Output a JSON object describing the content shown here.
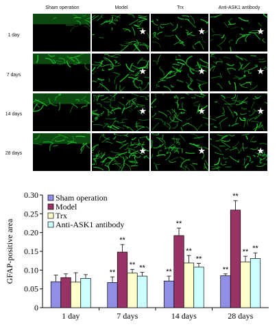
{
  "micrographs": {
    "columns": [
      "Sham operation",
      "Model",
      "Trx",
      "Anti-ASK1 antibody"
    ],
    "rows": [
      "1 day",
      "7 days",
      "14 days",
      "28 days"
    ],
    "marker_symbol": "★",
    "stain_color": "#22d12e"
  },
  "chart_data": {
    "type": "bar",
    "categories": [
      "1 day",
      "7 days",
      "14 days",
      "28 days"
    ],
    "ylabel": "GFAP-positive area",
    "xlabel": "",
    "ylim": [
      0,
      0.3
    ],
    "yticks": [
      "0",
      "0.05",
      "0.10",
      "0.15",
      "0.20",
      "0.25",
      "0.30"
    ],
    "grid": false,
    "legend_position": "top-left",
    "significance_label": "**",
    "series": [
      {
        "name": "Sham operation",
        "color": "#8f8fe6",
        "values": [
          0.069,
          0.067,
          0.071,
          0.085
        ],
        "errors": [
          0.018,
          0.015,
          0.013,
          0.005
        ],
        "marked": [
          false,
          true,
          true,
          true
        ]
      },
      {
        "name": "Model",
        "color": "#993366",
        "values": [
          0.08,
          0.148,
          0.192,
          0.26
        ],
        "errors": [
          0.01,
          0.02,
          0.02,
          0.025
        ],
        "marked": [
          false,
          true,
          true,
          true
        ]
      },
      {
        "name": "Trx",
        "color": "#ffffcc",
        "values": [
          0.068,
          0.092,
          0.119,
          0.122
        ],
        "errors": [
          0.025,
          0.01,
          0.02,
          0.015
        ],
        "marked": [
          false,
          true,
          true,
          true
        ]
      },
      {
        "name": "Anti-ASK1 antibody",
        "color": "#ccffff",
        "values": [
          0.078,
          0.084,
          0.108,
          0.131
        ],
        "errors": [
          0.01,
          0.01,
          0.01,
          0.015
        ],
        "marked": [
          false,
          true,
          true,
          true
        ]
      }
    ]
  }
}
